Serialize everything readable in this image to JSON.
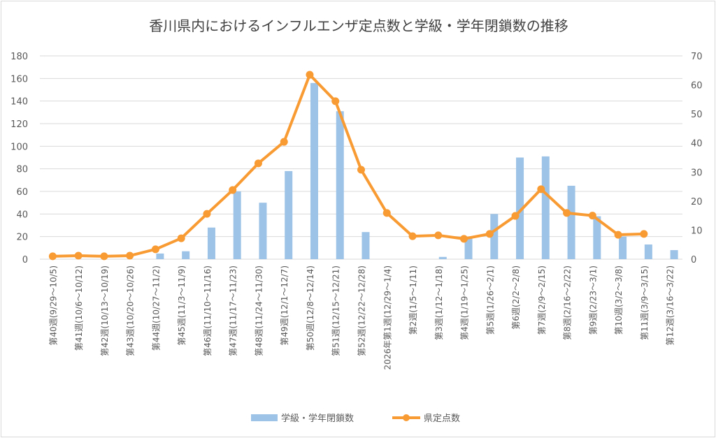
{
  "chart_data": {
    "type": "bar+line",
    "title": "香川県内におけるインフルエンザ定点数と学級・学年閉鎖数の推移",
    "categories": [
      "第40週(9/29～10/5)",
      "第41週(10/6～10/12)",
      "第42週(10/13～10/19)",
      "第43週(10/20～10/26)",
      "第44週(10/27～11/2)",
      "第45週(11/3～11/9)",
      "第46週(11/10～11/16)",
      "第47週(11/17～11/23)",
      "第48週(11/24～11/30)",
      "第49週(12/1～12/7)",
      "第50週(12/8～12/14)",
      "第51週(12/15～12/21)",
      "第52週(12/22～12/28)",
      "2026年第1週(12/29～1/4)",
      "第2週(1/5～1/11)",
      "第3週(1/12～1/18)",
      "第4週(1/19～1/25)",
      "第5週(1/26～2/1)",
      "第6週(2/2～2/8)",
      "第7週(2/9～2/15)",
      "第8週(2/16～2/22)",
      "第9週(2/23～3/1)",
      "第10週(3/2～3/8)",
      "第11週(3/9～3/15)",
      "第12週(3/16～3/22)"
    ],
    "series": [
      {
        "name": "学級・学年閉鎖数",
        "type": "bar",
        "axis": "left",
        "color": "#9dc3e6",
        "values": [
          0,
          0,
          0,
          0,
          5,
          7,
          28,
          60,
          50,
          78,
          156,
          131,
          24,
          0,
          0,
          2,
          19,
          40,
          90,
          91,
          65,
          38,
          20,
          13,
          8
        ]
      },
      {
        "name": "県定点数",
        "type": "line",
        "axis": "right",
        "color": "#f99b33",
        "values": [
          1.0,
          1.2,
          1.0,
          1.2,
          3.4,
          7.2,
          15.6,
          23.8,
          33.0,
          40.4,
          63.5,
          54.4,
          30.8,
          15.9,
          7.9,
          8.2,
          7.0,
          8.7,
          14.9,
          24.1,
          15.9,
          15.0,
          8.4,
          8.7,
          null
        ]
      }
    ],
    "ylim_left": [
      0,
      180
    ],
    "yticks_left": [
      "0",
      "20",
      "40",
      "60",
      "80",
      "100",
      "120",
      "140",
      "160",
      "180"
    ],
    "ylim_right": [
      0,
      70
    ],
    "yticks_right": [
      "0",
      "10",
      "20",
      "30",
      "40",
      "50",
      "60",
      "70"
    ],
    "grid": true,
    "legend": "bottom"
  }
}
